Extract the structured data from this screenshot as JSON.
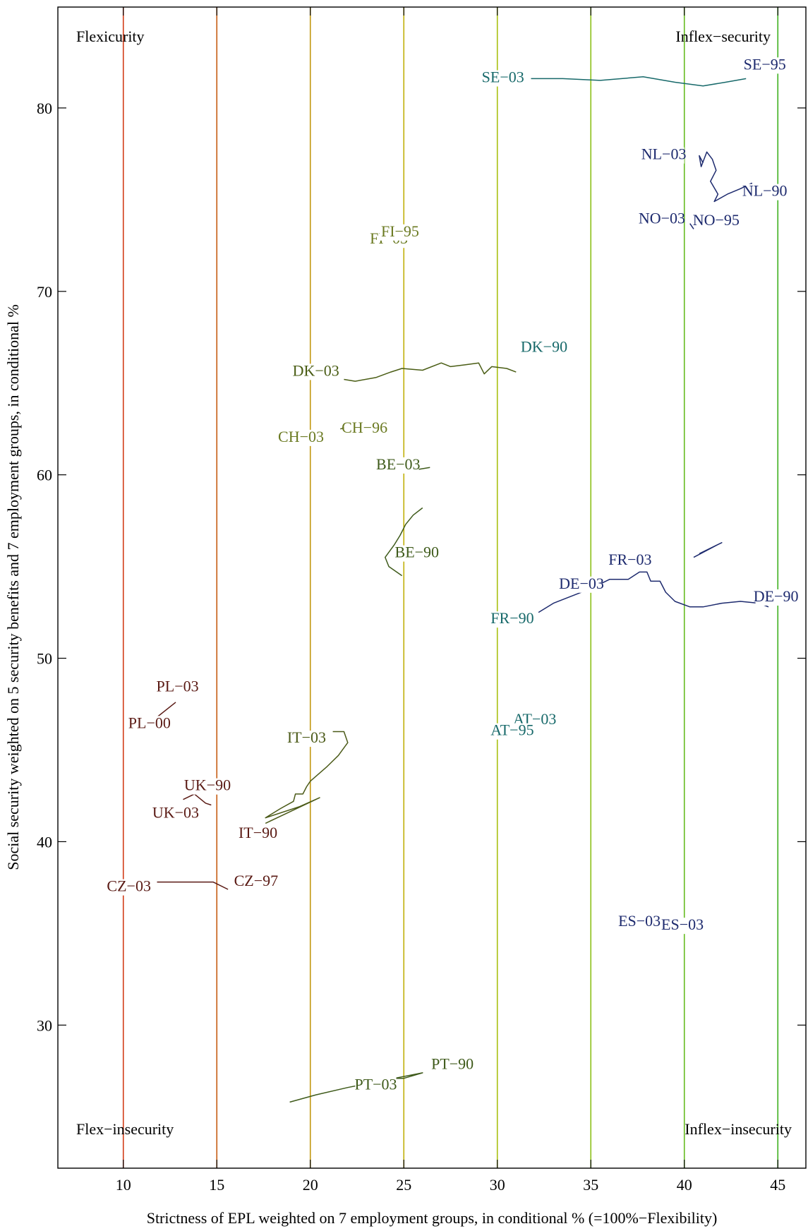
{
  "chart_data": {
    "type": "line",
    "xlabel": "Strictness of EPL weighted on 7 employment groups, in conditional % (=100%−Flexibility)",
    "ylabel": "Social security weighted on 5 security benefits and 7 employment groups, in conditional %",
    "xlim": [
      6.5,
      46.5
    ],
    "ylim": [
      22.2,
      85.5
    ],
    "xticks": [
      10,
      15,
      20,
      25,
      30,
      35,
      40,
      45
    ],
    "yticks": [
      30,
      40,
      50,
      60,
      70,
      80
    ],
    "grid": false,
    "legend": "none",
    "quadrant_labels": {
      "top_left": "Flexicurity",
      "top_right": "Inflex−security",
      "bottom_left": "Flex−insecurity",
      "bottom_right": "Inflex−insecurity"
    },
    "reference_lines": [
      {
        "x": 10,
        "color": "#d23c18"
      },
      {
        "x": 15,
        "color": "#c65c12"
      },
      {
        "x": 20,
        "color": "#c29810"
      },
      {
        "x": 25,
        "color": "#c0b00a"
      },
      {
        "x": 30,
        "color": "#a8c010"
      },
      {
        "x": 35,
        "color": "#8cc018"
      },
      {
        "x": 40,
        "color": "#66bc20"
      },
      {
        "x": 45,
        "color": "#3fb020"
      }
    ],
    "series": [
      {
        "color": "#17696a",
        "points": [
          [
            31.8,
            81.6
          ],
          [
            33.5,
            81.6
          ],
          [
            35.5,
            81.5
          ],
          [
            37.8,
            81.7
          ],
          [
            39.5,
            81.4
          ],
          [
            41.0,
            81.2
          ],
          [
            42.2,
            81.4
          ],
          [
            43.3,
            81.6
          ]
        ]
      },
      {
        "color": "#1d2a6e",
        "points": [
          [
            41.0,
            77.0
          ],
          [
            40.8,
            77.4
          ],
          [
            40.9,
            76.8
          ],
          [
            41.2,
            77.6
          ],
          [
            41.5,
            77.2
          ],
          [
            41.7,
            76.6
          ],
          [
            41.4,
            76.0
          ],
          [
            41.8,
            75.3
          ],
          [
            41.6,
            74.9
          ],
          [
            42.3,
            75.3
          ],
          [
            43.0,
            75.6
          ],
          [
            43.6,
            75.9
          ],
          [
            43.5,
            75.3
          ]
        ]
      },
      {
        "color": "#1d2a6e",
        "points": [
          [
            40.3,
            73.7
          ],
          [
            40.5,
            73.4
          ]
        ]
      },
      {
        "color": "#4a5d15",
        "points": [
          [
            21.8,
            65.2
          ],
          [
            22.4,
            65.1
          ],
          [
            23.5,
            65.3
          ],
          [
            24.3,
            65.6
          ],
          [
            24.9,
            65.8
          ],
          [
            26.0,
            65.7
          ],
          [
            27.0,
            66.1
          ],
          [
            27.5,
            65.9
          ],
          [
            28.3,
            66.0
          ],
          [
            29.0,
            66.1
          ],
          [
            29.3,
            65.5
          ],
          [
            29.7,
            65.9
          ],
          [
            30.5,
            65.8
          ],
          [
            31.0,
            65.6
          ]
        ]
      },
      {
        "color": "#4b5a18",
        "points": [
          [
            21.6,
            62.5
          ],
          [
            22.0,
            62.6
          ],
          [
            22.3,
            62.4
          ]
        ]
      },
      {
        "color": "#3e5a1a",
        "points": [
          [
            25.8,
            60.3
          ],
          [
            26.4,
            60.4
          ]
        ]
      },
      {
        "color": "#3e5a1a",
        "points": [
          [
            26.0,
            58.2
          ],
          [
            25.5,
            57.8
          ],
          [
            25.1,
            57.3
          ],
          [
            24.8,
            56.7
          ],
          [
            24.5,
            56.2
          ],
          [
            24.0,
            55.5
          ],
          [
            24.2,
            55.0
          ],
          [
            24.9,
            54.5
          ]
        ]
      },
      {
        "color": "#1d2a6e",
        "points": [
          [
            32.2,
            52.5
          ],
          [
            33.0,
            53.0
          ],
          [
            34.0,
            53.4
          ],
          [
            35.0,
            53.8
          ],
          [
            36.0,
            54.3
          ],
          [
            37.0,
            54.3
          ],
          [
            37.6,
            54.7
          ],
          [
            38.0,
            54.7
          ],
          [
            38.2,
            54.2
          ],
          [
            38.7,
            54.2
          ],
          [
            39.0,
            53.6
          ],
          [
            39.5,
            53.1
          ],
          [
            40.3,
            52.8
          ],
          [
            41.0,
            52.8
          ],
          [
            42.0,
            53.0
          ],
          [
            43.0,
            53.1
          ],
          [
            44.0,
            53.0
          ],
          [
            44.5,
            52.8
          ]
        ]
      },
      {
        "color": "#1d2a6e",
        "points": [
          [
            40.5,
            55.5
          ],
          [
            41.8,
            56.2
          ],
          [
            42.0,
            56.3
          ],
          [
            40.8,
            55.7
          ]
        ]
      },
      {
        "color": "#5a1a14",
        "points": [
          [
            11.2,
            46.3
          ],
          [
            12.8,
            47.6
          ]
        ]
      },
      {
        "color": "#4b5a18",
        "points": [
          [
            21.2,
            46.0
          ],
          [
            21.8,
            46.0
          ],
          [
            22.0,
            45.4
          ],
          [
            21.5,
            44.7
          ],
          [
            20.9,
            44.1
          ],
          [
            20.0,
            43.3
          ],
          [
            19.8,
            43.0
          ],
          [
            19.6,
            42.6
          ],
          [
            19.2,
            42.6
          ],
          [
            19.1,
            42.2
          ],
          [
            18.4,
            41.8
          ],
          [
            17.6,
            41.3
          ],
          [
            19.4,
            41.9
          ],
          [
            20.5,
            42.4
          ],
          [
            17.6,
            41.0
          ]
        ]
      },
      {
        "color": "#5a1a14",
        "points": [
          [
            13.2,
            42.3
          ],
          [
            13.8,
            42.6
          ],
          [
            14.4,
            42.1
          ],
          [
            14.7,
            42.0
          ]
        ]
      },
      {
        "color": "#5a1a14",
        "points": [
          [
            11.8,
            37.8
          ],
          [
            13.5,
            37.8
          ],
          [
            14.8,
            37.8
          ],
          [
            15.6,
            37.4
          ]
        ]
      },
      {
        "color": "#3e5a1a",
        "points": [
          [
            18.9,
            25.8
          ],
          [
            20.3,
            26.2
          ],
          [
            22.0,
            26.6
          ],
          [
            24.0,
            27.0
          ],
          [
            26.0,
            27.4
          ],
          [
            25.0,
            27.1
          ],
          [
            24.5,
            27.1
          ]
        ]
      }
    ],
    "labels": [
      {
        "text": "SE−03",
        "x": 30.3,
        "y": 81.4,
        "color": "#17696a"
      },
      {
        "text": "SE−95",
        "x": 44.3,
        "y": 82.1,
        "color": "#1d2a6e"
      },
      {
        "text": "NL−03",
        "x": 38.9,
        "y": 77.2,
        "color": "#1d2a6e"
      },
      {
        "text": "NL−90",
        "x": 44.3,
        "y": 75.2,
        "color": "#1d2a6e"
      },
      {
        "text": "NO−03",
        "x": 38.8,
        "y": 73.7,
        "color": "#1d2a6e"
      },
      {
        "text": "NO−95",
        "x": 41.7,
        "y": 73.6,
        "color": "#1d2a6e"
      },
      {
        "text": "FI−03",
        "x": 24.2,
        "y": 72.6,
        "color": "#6b7a22"
      },
      {
        "text": "FI−95",
        "x": 24.8,
        "y": 73.0,
        "color": "#6b7a22"
      },
      {
        "text": "DK−03",
        "x": 20.3,
        "y": 65.4,
        "color": "#4a5d15"
      },
      {
        "text": "DK−90",
        "x": 32.5,
        "y": 66.7,
        "color": "#17696a"
      },
      {
        "text": "CH−03",
        "x": 19.5,
        "y": 61.8,
        "color": "#6b7a22"
      },
      {
        "text": "CH−96",
        "x": 22.9,
        "y": 62.3,
        "color": "#6b7a22"
      },
      {
        "text": "BE−03",
        "x": 24.7,
        "y": 60.3,
        "color": "#3e5a1a"
      },
      {
        "text": "BE−90",
        "x": 25.7,
        "y": 55.5,
        "color": "#3e5a1a"
      },
      {
        "text": "DE−03",
        "x": 34.5,
        "y": 53.8,
        "color": "#1d2a6e"
      },
      {
        "text": "DE−90",
        "x": 44.9,
        "y": 53.1,
        "color": "#1d2a6e"
      },
      {
        "text": "FR−03",
        "x": 37.1,
        "y": 55.1,
        "color": "#1d2a6e"
      },
      {
        "text": "FR−90",
        "x": 30.8,
        "y": 51.9,
        "color": "#17696a"
      },
      {
        "text": "PL−03",
        "x": 12.9,
        "y": 48.2,
        "color": "#5a1a14"
      },
      {
        "text": "PL−00",
        "x": 11.4,
        "y": 46.2,
        "color": "#5a1a14"
      },
      {
        "text": "IT−03",
        "x": 19.8,
        "y": 45.4,
        "color": "#4b5a18"
      },
      {
        "text": "AT−03",
        "x": 32.0,
        "y": 46.4,
        "color": "#17696a"
      },
      {
        "text": "AT−95",
        "x": 30.8,
        "y": 45.8,
        "color": "#17696a"
      },
      {
        "text": "UK−90",
        "x": 14.5,
        "y": 42.8,
        "color": "#5a1a14"
      },
      {
        "text": "UK−03",
        "x": 12.8,
        "y": 41.3,
        "color": "#5a1a14"
      },
      {
        "text": "IT−90",
        "x": 17.2,
        "y": 40.2,
        "color": "#5a1a14"
      },
      {
        "text": "CZ−03",
        "x": 10.3,
        "y": 37.3,
        "color": "#5a1a14"
      },
      {
        "text": "CZ−97",
        "x": 17.1,
        "y": 37.6,
        "color": "#5a1a14"
      },
      {
        "text": "ES−03",
        "x": 37.6,
        "y": 35.4,
        "color": "#1d2a6e"
      },
      {
        "text": "ES−03",
        "x": 39.9,
        "y": 35.2,
        "color": "#1d2a6e"
      },
      {
        "text": "PT−90",
        "x": 27.6,
        "y": 27.6,
        "color": "#3e5a1a"
      },
      {
        "text": "PT−03",
        "x": 23.5,
        "y": 26.5,
        "color": "#3e5a1a"
      }
    ]
  }
}
